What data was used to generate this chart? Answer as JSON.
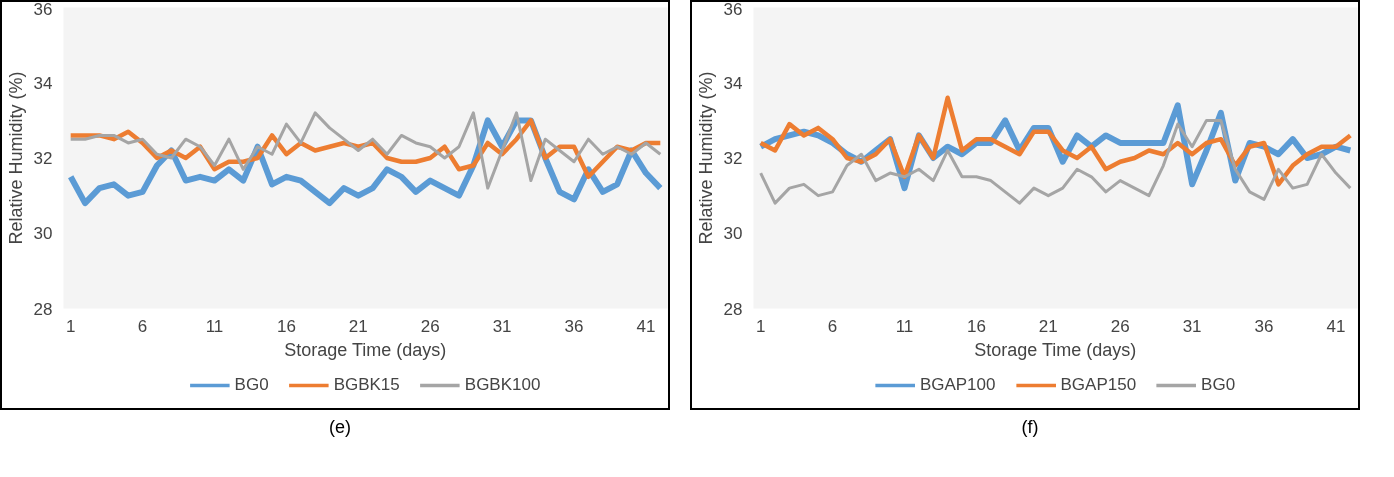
{
  "chart_data": [
    {
      "type": "line",
      "xlabel": "Storage Time (days)",
      "ylabel": "Relative Humidity (%)",
      "annotations": [
        "(e)"
      ],
      "x": [
        1,
        2,
        3,
        4,
        5,
        6,
        7,
        8,
        9,
        10,
        11,
        12,
        13,
        14,
        15,
        16,
        17,
        18,
        19,
        20,
        21,
        22,
        23,
        24,
        25,
        26,
        27,
        28,
        29,
        30,
        31,
        32,
        33,
        34,
        35,
        36,
        37,
        38,
        39,
        40,
        41,
        42
      ],
      "xlim": [
        0.5,
        42.5
      ],
      "xticks": [
        1,
        6,
        11,
        16,
        21,
        26,
        31,
        36,
        41
      ],
      "ylim": [
        28,
        36
      ],
      "yticks": [
        28,
        30,
        32,
        34,
        36
      ],
      "grid": false,
      "legend": "bottom",
      "series": [
        {
          "name": "BG0",
          "color": "#5b9bd5",
          "values": [
            31.5,
            30.8,
            31.2,
            31.3,
            31.0,
            31.1,
            31.8,
            32.2,
            31.4,
            31.5,
            31.4,
            31.7,
            31.4,
            32.3,
            31.3,
            31.5,
            31.4,
            31.1,
            30.8,
            31.2,
            31.0,
            31.2,
            31.7,
            31.5,
            31.1,
            31.4,
            31.2,
            31.0,
            31.8,
            33.0,
            32.3,
            33.0,
            33.0,
            32.0,
            31.1,
            30.9,
            31.7,
            31.1,
            31.3,
            32.2,
            31.6,
            31.2
          ]
        },
        {
          "name": "BGBK15",
          "color": "#ed7d31",
          "values": [
            32.6,
            32.6,
            32.6,
            32.5,
            32.7,
            32.4,
            32.0,
            32.2,
            32.0,
            32.3,
            31.7,
            31.9,
            31.9,
            32.0,
            32.6,
            32.1,
            32.4,
            32.2,
            32.3,
            32.4,
            32.3,
            32.4,
            32.0,
            31.9,
            31.9,
            32.0,
            32.3,
            31.7,
            31.8,
            32.4,
            32.1,
            32.5,
            33.0,
            32.0,
            32.3,
            32.3,
            31.5,
            31.9,
            32.3,
            32.2,
            32.4,
            32.4
          ]
        },
        {
          "name": "BGBK100",
          "color": "#a5a5a5",
          "values": [
            32.5,
            32.5,
            32.6,
            32.6,
            32.4,
            32.5,
            32.1,
            32.0,
            32.5,
            32.3,
            31.8,
            32.5,
            31.7,
            32.3,
            32.1,
            32.9,
            32.4,
            33.2,
            32.8,
            32.5,
            32.2,
            32.5,
            32.1,
            32.6,
            32.4,
            32.3,
            32.0,
            32.3,
            33.2,
            31.2,
            32.2,
            33.2,
            31.4,
            32.5,
            32.2,
            31.9,
            32.5,
            32.1,
            32.3,
            32.1,
            32.4,
            32.1
          ]
        }
      ]
    },
    {
      "type": "line",
      "xlabel": "Storage Time (days)",
      "ylabel": "Relative Humidity (%)",
      "annotations": [
        "(f)"
      ],
      "x": [
        1,
        2,
        3,
        4,
        5,
        6,
        7,
        8,
        9,
        10,
        11,
        12,
        13,
        14,
        15,
        16,
        17,
        18,
        19,
        20,
        21,
        22,
        23,
        24,
        25,
        26,
        27,
        28,
        29,
        30,
        31,
        32,
        33,
        34,
        35,
        36,
        37,
        38,
        39,
        40,
        41,
        42
      ],
      "xlim": [
        0.5,
        42.5
      ],
      "xticks": [
        1,
        6,
        11,
        16,
        21,
        26,
        31,
        36,
        41
      ],
      "ylim": [
        28,
        36
      ],
      "yticks": [
        28,
        30,
        32,
        34,
        36
      ],
      "grid": false,
      "legend": "bottom",
      "series": [
        {
          "name": "BGAP100",
          "color": "#5b9bd5",
          "values": [
            32.3,
            32.5,
            32.6,
            32.7,
            32.6,
            32.4,
            32.1,
            31.9,
            32.2,
            32.5,
            31.2,
            32.6,
            32.0,
            32.3,
            32.1,
            32.4,
            32.4,
            33.0,
            32.2,
            32.8,
            32.8,
            31.9,
            32.6,
            32.3,
            32.6,
            32.4,
            32.4,
            32.4,
            32.4,
            33.4,
            31.3,
            32.2,
            33.2,
            31.4,
            32.4,
            32.3,
            32.1,
            32.5,
            32.0,
            32.1,
            32.3,
            32.2
          ]
        },
        {
          "name": "BGAP150",
          "color": "#ed7d31",
          "values": [
            32.4,
            32.2,
            32.9,
            32.6,
            32.8,
            32.5,
            32.0,
            31.9,
            32.1,
            32.5,
            31.5,
            32.6,
            32.0,
            33.6,
            32.2,
            32.5,
            32.5,
            32.3,
            32.1,
            32.7,
            32.7,
            32.2,
            32.0,
            32.3,
            31.7,
            31.9,
            32.0,
            32.2,
            32.1,
            32.4,
            32.1,
            32.4,
            32.5,
            31.8,
            32.3,
            32.4,
            31.3,
            31.8,
            32.1,
            32.3,
            32.3,
            32.6
          ]
        },
        {
          "name": "BG0",
          "color": "#a5a5a5",
          "values": [
            31.6,
            30.8,
            31.2,
            31.3,
            31.0,
            31.1,
            31.8,
            32.1,
            31.4,
            31.6,
            31.5,
            31.7,
            31.4,
            32.2,
            31.5,
            31.5,
            31.4,
            31.1,
            30.8,
            31.2,
            31.0,
            31.2,
            31.7,
            31.5,
            31.1,
            31.4,
            31.2,
            31.0,
            31.8,
            32.9,
            32.3,
            33.0,
            33.0,
            31.7,
            31.1,
            30.9,
            31.7,
            31.2,
            31.3,
            32.1,
            31.6,
            31.2
          ]
        }
      ]
    }
  ]
}
